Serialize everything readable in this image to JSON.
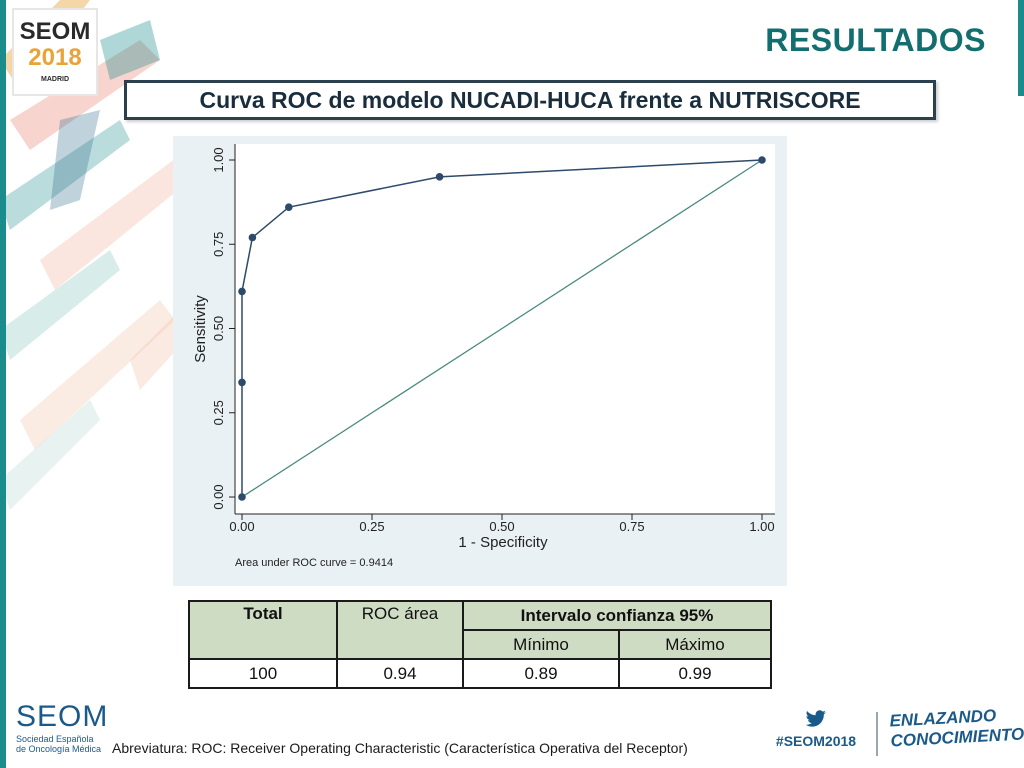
{
  "header": {
    "logo": {
      "line1": "SEOM",
      "line2": "2018",
      "line3": "MADRID"
    },
    "title": "RESULTADOS"
  },
  "subtitle": "Curva ROC de modelo NUCADI-HUCA frente a NUTRISCORE",
  "chart_data": {
    "type": "line",
    "xlabel": "1 - Specificity",
    "ylabel": "Sensitivity",
    "xlim": [
      0,
      1
    ],
    "ylim": [
      0,
      1
    ],
    "xticks": [
      "0.00",
      "0.25",
      "0.50",
      "0.75",
      "1.00"
    ],
    "yticks": [
      "0.00",
      "0.25",
      "0.50",
      "0.75",
      "1.00"
    ],
    "grid": false,
    "annotation": "Area under ROC curve = 0.9414",
    "series": [
      {
        "x": [
          0.0,
          0.0,
          0.0,
          0.02,
          0.09,
          0.38,
          1.0
        ],
        "y": [
          0.0,
          0.34,
          0.61,
          0.77,
          0.86,
          0.95,
          1.0
        ],
        "color": "#2e4a6b"
      },
      {
        "x": [
          0.0,
          1.0
        ],
        "y": [
          0.0,
          1.0
        ],
        "color": "#4a8a80"
      }
    ]
  },
  "table": {
    "h_total": "Total",
    "h_roc": "ROC área",
    "h_ic": "Intervalo confianza 95%",
    "h_min": "Mínimo",
    "h_max": "Máximo",
    "row": {
      "total": "100",
      "roc": "0.94",
      "min": "0.89",
      "max": "0.99"
    }
  },
  "footer": {
    "seom": "SEOM",
    "seom_sub1": "Sociedad Española",
    "seom_sub2": "de Oncología Médica",
    "abbreviation": "Abreviatura: ROC: Receiver Operating Characteristic (Característica Operativa del Receptor)",
    "hashtag": "#SEOM2018",
    "slogan1": "ENLAZANDO",
    "slogan2": "CONOCIMIENTO"
  },
  "colors": {
    "accent": "#136f6f",
    "table_header_bg": "#cfdcc4",
    "curve": "#2e4a6b",
    "reference": "#4a8a80"
  }
}
